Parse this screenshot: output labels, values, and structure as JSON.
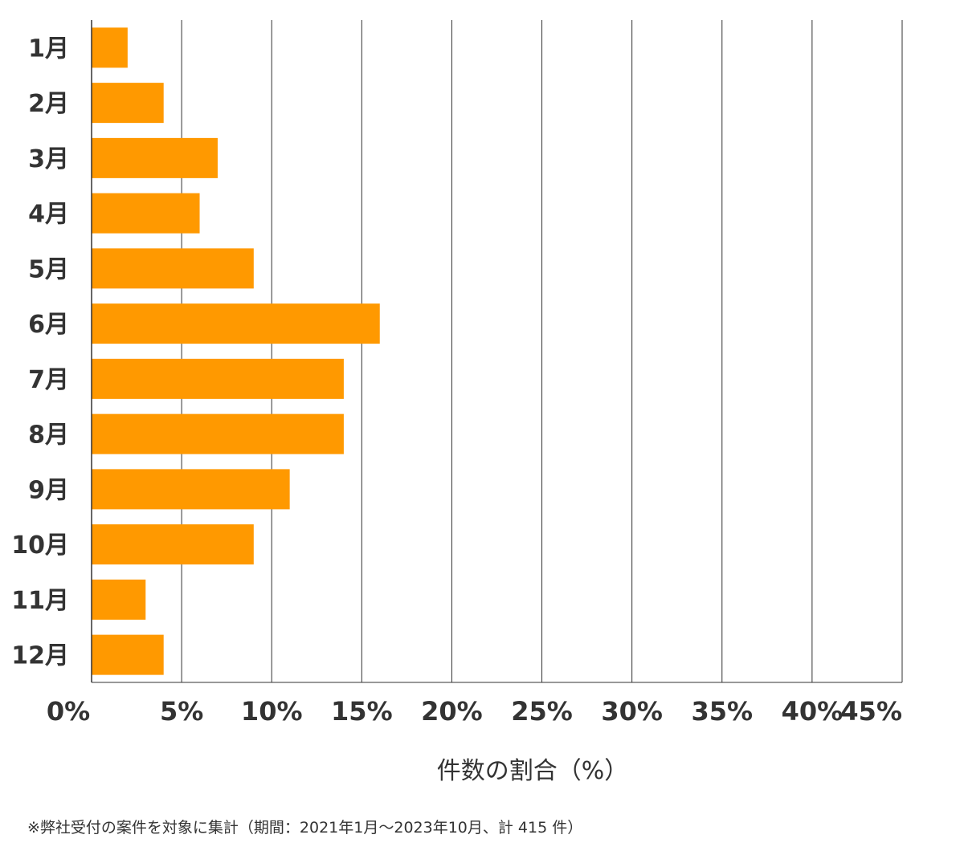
{
  "chart_data": {
    "type": "bar",
    "orientation": "horizontal",
    "categories": [
      "1月",
      "2月",
      "3月",
      "4月",
      "5月",
      "6月",
      "7月",
      "8月",
      "9月",
      "10月",
      "11月",
      "12月"
    ],
    "values": [
      2,
      4,
      7,
      6,
      9,
      16,
      14,
      14,
      11,
      9,
      3,
      4
    ],
    "xlabel": "件数の割合（%）",
    "ylabel": "",
    "xlim": [
      0,
      45
    ],
    "xticks": [
      0,
      5,
      10,
      15,
      20,
      25,
      30,
      35,
      40,
      45
    ],
    "xtick_labels": [
      "0%",
      "5%",
      "10%",
      "15%",
      "20%",
      "25%",
      "30%",
      "35%",
      "40%",
      "45%"
    ],
    "grid": true,
    "colors": {
      "bar": "#FF9900",
      "grid": "#333333",
      "text": "#333333"
    }
  },
  "footnote": "※弊社受付の案件を対象に集計（期間：2021年1月～2023年10月、計 415 件）"
}
